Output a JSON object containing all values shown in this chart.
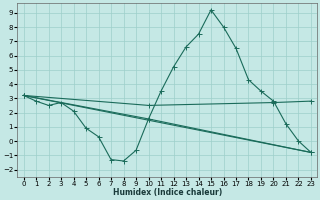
{
  "xlabel": "Humidex (Indice chaleur)",
  "background_color": "#c5e8e5",
  "grid_color": "#9ecfca",
  "line_color": "#1a6b5a",
  "xlim": [
    -0.5,
    23.5
  ],
  "ylim": [
    -2.5,
    9.7
  ],
  "xticks": [
    0,
    1,
    2,
    3,
    4,
    5,
    6,
    7,
    8,
    9,
    10,
    11,
    12,
    13,
    14,
    15,
    16,
    17,
    18,
    19,
    20,
    21,
    22,
    23
  ],
  "yticks": [
    -2,
    -1,
    0,
    1,
    2,
    3,
    4,
    5,
    6,
    7,
    8,
    9
  ],
  "curve1_x": [
    0,
    1,
    2,
    3,
    4,
    5,
    6,
    7,
    8,
    9,
    10,
    11,
    12,
    13,
    14,
    15,
    16,
    17,
    18,
    19,
    20,
    21,
    22,
    23
  ],
  "curve1_y": [
    3.2,
    2.8,
    2.5,
    2.7,
    2.1,
    0.9,
    0.3,
    -1.3,
    -1.4,
    -0.65,
    1.55,
    3.5,
    5.2,
    6.6,
    7.5,
    9.2,
    8.0,
    6.5,
    4.3,
    3.5,
    2.8,
    1.2,
    0.0,
    -0.8
  ],
  "curve2_x": [
    0,
    10,
    20,
    23
  ],
  "curve2_y": [
    3.2,
    2.5,
    2.7,
    2.8
  ],
  "curve3_x": [
    0,
    10,
    23
  ],
  "curve3_y": [
    3.2,
    1.55,
    -0.8
  ],
  "curve4_x": [
    0,
    23
  ],
  "curve4_y": [
    3.2,
    -0.8
  ]
}
